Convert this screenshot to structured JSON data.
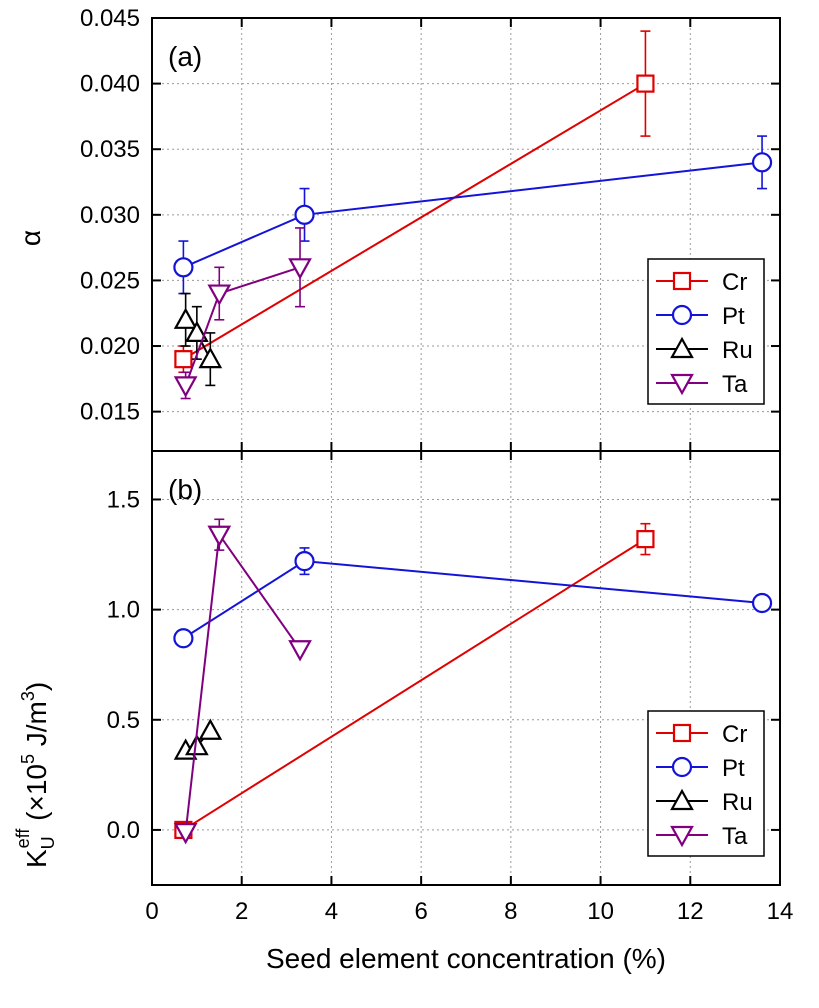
{
  "chart_data": [
    {
      "type": "line",
      "panel_label": "(a)",
      "ylabel": "α",
      "xlim": [
        0,
        14
      ],
      "ylim": [
        0.012,
        0.045
      ],
      "yticks": [
        "0.015",
        "0.020",
        "0.025",
        "0.030",
        "0.035",
        "0.040",
        "0.045"
      ],
      "grid": true,
      "legend": "bottom-right",
      "series": [
        {
          "name": "Cr",
          "color": "#e00000",
          "marker": "square",
          "x": [
            0.7,
            11.0
          ],
          "y": [
            0.019,
            0.04
          ],
          "err": [
            0.001,
            0.004
          ]
        },
        {
          "name": "Pt",
          "color": "#1414d8",
          "marker": "circle",
          "x": [
            0.7,
            3.4,
            13.6
          ],
          "y": [
            0.026,
            0.03,
            0.034
          ],
          "err": [
            0.002,
            0.002,
            0.002
          ]
        },
        {
          "name": "Ru",
          "color": "#000000",
          "marker": "triangle-up",
          "x": [
            0.75,
            1.0,
            1.3
          ],
          "y": [
            0.022,
            0.021,
            0.019
          ],
          "err": [
            0.002,
            0.002,
            0.002
          ]
        },
        {
          "name": "Ta",
          "color": "#800080",
          "marker": "triangle-down",
          "x": [
            0.75,
            1.5,
            3.3
          ],
          "y": [
            0.017,
            0.024,
            0.026
          ],
          "err": [
            0.001,
            0.002,
            0.003
          ]
        }
      ]
    },
    {
      "type": "line",
      "panel_label": "(b)",
      "ylabel_main": "K",
      "ylabel_sub": "U",
      "ylabel_sup": "eff",
      "ylabel_rest": " (×10",
      "ylabel_exp": "5",
      "ylabel_unit": " J/m",
      "ylabel_unit_exp": "3",
      "ylabel_close": ")",
      "xlabel": "Seed element concentration (%)",
      "xlim": [
        0,
        14
      ],
      "xticks": [
        "0",
        "2",
        "4",
        "6",
        "8",
        "10",
        "12",
        "14"
      ],
      "ylim": [
        -0.25,
        1.72
      ],
      "yticks": [
        "0.0",
        "0.5",
        "1.0",
        "1.5"
      ],
      "grid": true,
      "legend": "bottom-right",
      "series": [
        {
          "name": "Cr",
          "color": "#e00000",
          "marker": "square",
          "x": [
            0.7,
            11.0
          ],
          "y": [
            0.0,
            1.32
          ],
          "err": [
            0.0,
            0.07
          ]
        },
        {
          "name": "Pt",
          "color": "#1414d8",
          "marker": "circle",
          "x": [
            0.7,
            3.4,
            13.6
          ],
          "y": [
            0.87,
            1.22,
            1.03
          ],
          "err": [
            0.0,
            0.06,
            0.0
          ]
        },
        {
          "name": "Ru",
          "color": "#000000",
          "marker": "triangle-up",
          "x": [
            0.75,
            1.0,
            1.3
          ],
          "y": [
            0.36,
            0.38,
            0.45
          ],
          "err": [
            0.0,
            0.0,
            0.0
          ]
        },
        {
          "name": "Ta",
          "color": "#800080",
          "marker": "triangle-down",
          "x": [
            0.75,
            1.5,
            3.3
          ],
          "y": [
            -0.01,
            1.34,
            0.82
          ],
          "err": [
            0.0,
            0.07,
            0.0
          ]
        }
      ]
    }
  ]
}
